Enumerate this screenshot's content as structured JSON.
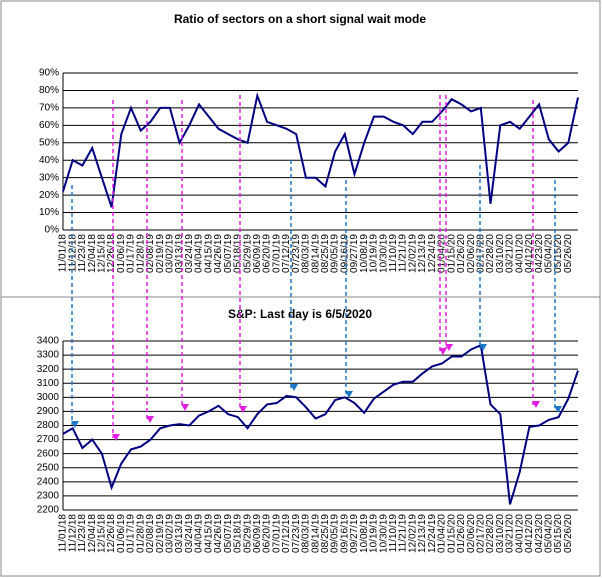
{
  "chart_data": [
    {
      "type": "line",
      "title": "Ratio of sectors on a short signal wait mode",
      "categories": [
        "11/01/18",
        "11/12/18",
        "11/23/18",
        "12/04/18",
        "12/15/18",
        "12/26/18",
        "01/06/19",
        "01/17/19",
        "01/28/19",
        "02/08/19",
        "02/19/19",
        "03/02/19",
        "03/13/19",
        "03/24/19",
        "04/04/19",
        "04/15/19",
        "04/26/19",
        "05/07/19",
        "05/18/19",
        "05/29/19",
        "06/09/19",
        "06/20/19",
        "07/01/19",
        "07/12/19",
        "07/23/19",
        "08/03/19",
        "08/14/19",
        "08/25/19",
        "09/05/19",
        "09/16/19",
        "09/27/19",
        "10/08/19",
        "10/19/19",
        "10/30/19",
        "11/10/19",
        "11/21/19",
        "12/02/19",
        "12/13/19",
        "12/24/19",
        "01/04/20",
        "01/15/20",
        "01/26/20",
        "02/06/20",
        "02/17/20",
        "02/28/20",
        "03/10/20",
        "03/21/20",
        "04/01/20",
        "04/12/20",
        "04/23/20",
        "05/04/20",
        "05/15/20",
        "05/26/20",
        null
      ],
      "series": [
        {
          "color": "#000080",
          "values": [
            22,
            40,
            37,
            47,
            30,
            13,
            55,
            70,
            57,
            62,
            70,
            70,
            50,
            60,
            72,
            65,
            58,
            55,
            52,
            50,
            77,
            62,
            60,
            58,
            55,
            30,
            30,
            25,
            45,
            55,
            32,
            50,
            65,
            65,
            62,
            60,
            55,
            62,
            62,
            68,
            75,
            72,
            68,
            70,
            15,
            60,
            62,
            58,
            65,
            72,
            52,
            45,
            50,
            76
          ]
        }
      ],
      "ylim": [
        0,
        90
      ],
      "yticks": [
        {
          "value": 0,
          "label": "0%"
        },
        {
          "value": 10,
          "label": "10%"
        },
        {
          "value": 20,
          "label": "20%"
        },
        {
          "value": 30,
          "label": "30%"
        },
        {
          "value": 40,
          "label": "40%"
        },
        {
          "value": 50,
          "label": "50%"
        },
        {
          "value": 60,
          "label": "60%"
        },
        {
          "value": 70,
          "label": "70%"
        },
        {
          "value": 80,
          "label": "80%"
        },
        {
          "value": 90,
          "label": "90%"
        }
      ],
      "grid": true
    },
    {
      "type": "line",
      "title": "S&P: Last day is 6/5/2020",
      "categories": [
        "11/01/18",
        "11/12/18",
        "11/23/18",
        "12/04/18",
        "12/15/18",
        "12/26/18",
        "01/06/19",
        "01/17/19",
        "01/28/19",
        "02/08/19",
        "02/19/19",
        "03/02/19",
        "03/13/19",
        "03/24/19",
        "04/04/19",
        "04/15/19",
        "04/26/19",
        "05/07/19",
        "05/18/19",
        "05/29/19",
        "06/09/19",
        "06/20/19",
        "07/01/19",
        "07/12/19",
        "07/23/19",
        "08/03/19",
        "08/14/19",
        "08/25/19",
        "09/05/19",
        "09/16/19",
        "09/27/19",
        "10/08/19",
        "10/19/19",
        "10/30/19",
        "11/10/19",
        "11/21/19",
        "12/02/19",
        "12/13/19",
        "12/24/19",
        "01/04/20",
        "01/15/20",
        "01/26/20",
        "02/06/20",
        "02/17/20",
        "02/28/20",
        "03/10/20",
        "03/21/20",
        "04/01/20",
        "04/12/20",
        "04/23/20",
        "05/04/20",
        "05/15/20",
        "05/26/20",
        null
      ],
      "series": [
        {
          "color": "#000080",
          "values": [
            2740,
            2780,
            2640,
            2700,
            2600,
            2360,
            2530,
            2630,
            2650,
            2700,
            2780,
            2800,
            2810,
            2800,
            2870,
            2900,
            2940,
            2880,
            2860,
            2780,
            2880,
            2950,
            2960,
            3010,
            3000,
            2930,
            2850,
            2880,
            2980,
            3000,
            2960,
            2890,
            2990,
            3040,
            3090,
            3110,
            3110,
            3170,
            3220,
            3240,
            3290,
            3290,
            3340,
            3370,
            2950,
            2880,
            2240,
            2470,
            2790,
            2800,
            2840,
            2860,
            2990,
            3190
          ]
        }
      ],
      "ylim": [
        2200,
        3400
      ],
      "yticks": [
        2200,
        2300,
        2400,
        2500,
        2600,
        2700,
        2800,
        2900,
        3000,
        3100,
        3200,
        3300,
        3400
      ],
      "grid": true
    }
  ]
}
